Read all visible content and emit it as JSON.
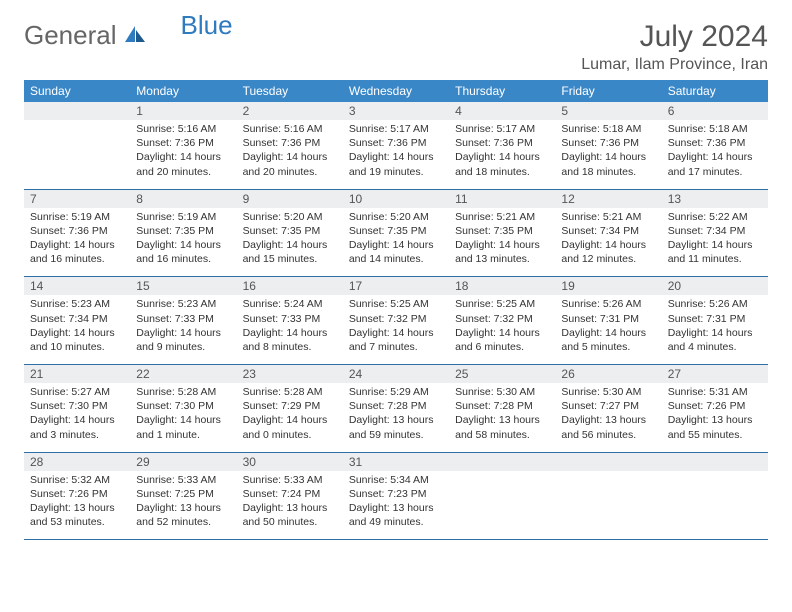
{
  "logo": {
    "general": "General",
    "blue": "Blue"
  },
  "title": "July 2024",
  "location": "Lumar, Ilam Province, Iran",
  "colors": {
    "header_bg": "#3a87c8",
    "header_text": "#ffffff",
    "daynum_bg": "#eceef0",
    "border": "#2f6fa8",
    "logo_blue": "#2f7bbf",
    "text": "#333333"
  },
  "weekdays": [
    "Sunday",
    "Monday",
    "Tuesday",
    "Wednesday",
    "Thursday",
    "Friday",
    "Saturday"
  ],
  "weeks": [
    [
      null,
      {
        "n": "1",
        "sr": "Sunrise: 5:16 AM",
        "ss": "Sunset: 7:36 PM",
        "d1": "Daylight: 14 hours",
        "d2": "and 20 minutes."
      },
      {
        "n": "2",
        "sr": "Sunrise: 5:16 AM",
        "ss": "Sunset: 7:36 PM",
        "d1": "Daylight: 14 hours",
        "d2": "and 20 minutes."
      },
      {
        "n": "3",
        "sr": "Sunrise: 5:17 AM",
        "ss": "Sunset: 7:36 PM",
        "d1": "Daylight: 14 hours",
        "d2": "and 19 minutes."
      },
      {
        "n": "4",
        "sr": "Sunrise: 5:17 AM",
        "ss": "Sunset: 7:36 PM",
        "d1": "Daylight: 14 hours",
        "d2": "and 18 minutes."
      },
      {
        "n": "5",
        "sr": "Sunrise: 5:18 AM",
        "ss": "Sunset: 7:36 PM",
        "d1": "Daylight: 14 hours",
        "d2": "and 18 minutes."
      },
      {
        "n": "6",
        "sr": "Sunrise: 5:18 AM",
        "ss": "Sunset: 7:36 PM",
        "d1": "Daylight: 14 hours",
        "d2": "and 17 minutes."
      }
    ],
    [
      {
        "n": "7",
        "sr": "Sunrise: 5:19 AM",
        "ss": "Sunset: 7:36 PM",
        "d1": "Daylight: 14 hours",
        "d2": "and 16 minutes."
      },
      {
        "n": "8",
        "sr": "Sunrise: 5:19 AM",
        "ss": "Sunset: 7:35 PM",
        "d1": "Daylight: 14 hours",
        "d2": "and 16 minutes."
      },
      {
        "n": "9",
        "sr": "Sunrise: 5:20 AM",
        "ss": "Sunset: 7:35 PM",
        "d1": "Daylight: 14 hours",
        "d2": "and 15 minutes."
      },
      {
        "n": "10",
        "sr": "Sunrise: 5:20 AM",
        "ss": "Sunset: 7:35 PM",
        "d1": "Daylight: 14 hours",
        "d2": "and 14 minutes."
      },
      {
        "n": "11",
        "sr": "Sunrise: 5:21 AM",
        "ss": "Sunset: 7:35 PM",
        "d1": "Daylight: 14 hours",
        "d2": "and 13 minutes."
      },
      {
        "n": "12",
        "sr": "Sunrise: 5:21 AM",
        "ss": "Sunset: 7:34 PM",
        "d1": "Daylight: 14 hours",
        "d2": "and 12 minutes."
      },
      {
        "n": "13",
        "sr": "Sunrise: 5:22 AM",
        "ss": "Sunset: 7:34 PM",
        "d1": "Daylight: 14 hours",
        "d2": "and 11 minutes."
      }
    ],
    [
      {
        "n": "14",
        "sr": "Sunrise: 5:23 AM",
        "ss": "Sunset: 7:34 PM",
        "d1": "Daylight: 14 hours",
        "d2": "and 10 minutes."
      },
      {
        "n": "15",
        "sr": "Sunrise: 5:23 AM",
        "ss": "Sunset: 7:33 PM",
        "d1": "Daylight: 14 hours",
        "d2": "and 9 minutes."
      },
      {
        "n": "16",
        "sr": "Sunrise: 5:24 AM",
        "ss": "Sunset: 7:33 PM",
        "d1": "Daylight: 14 hours",
        "d2": "and 8 minutes."
      },
      {
        "n": "17",
        "sr": "Sunrise: 5:25 AM",
        "ss": "Sunset: 7:32 PM",
        "d1": "Daylight: 14 hours",
        "d2": "and 7 minutes."
      },
      {
        "n": "18",
        "sr": "Sunrise: 5:25 AM",
        "ss": "Sunset: 7:32 PM",
        "d1": "Daylight: 14 hours",
        "d2": "and 6 minutes."
      },
      {
        "n": "19",
        "sr": "Sunrise: 5:26 AM",
        "ss": "Sunset: 7:31 PM",
        "d1": "Daylight: 14 hours",
        "d2": "and 5 minutes."
      },
      {
        "n": "20",
        "sr": "Sunrise: 5:26 AM",
        "ss": "Sunset: 7:31 PM",
        "d1": "Daylight: 14 hours",
        "d2": "and 4 minutes."
      }
    ],
    [
      {
        "n": "21",
        "sr": "Sunrise: 5:27 AM",
        "ss": "Sunset: 7:30 PM",
        "d1": "Daylight: 14 hours",
        "d2": "and 3 minutes."
      },
      {
        "n": "22",
        "sr": "Sunrise: 5:28 AM",
        "ss": "Sunset: 7:30 PM",
        "d1": "Daylight: 14 hours",
        "d2": "and 1 minute."
      },
      {
        "n": "23",
        "sr": "Sunrise: 5:28 AM",
        "ss": "Sunset: 7:29 PM",
        "d1": "Daylight: 14 hours",
        "d2": "and 0 minutes."
      },
      {
        "n": "24",
        "sr": "Sunrise: 5:29 AM",
        "ss": "Sunset: 7:28 PM",
        "d1": "Daylight: 13 hours",
        "d2": "and 59 minutes."
      },
      {
        "n": "25",
        "sr": "Sunrise: 5:30 AM",
        "ss": "Sunset: 7:28 PM",
        "d1": "Daylight: 13 hours",
        "d2": "and 58 minutes."
      },
      {
        "n": "26",
        "sr": "Sunrise: 5:30 AM",
        "ss": "Sunset: 7:27 PM",
        "d1": "Daylight: 13 hours",
        "d2": "and 56 minutes."
      },
      {
        "n": "27",
        "sr": "Sunrise: 5:31 AM",
        "ss": "Sunset: 7:26 PM",
        "d1": "Daylight: 13 hours",
        "d2": "and 55 minutes."
      }
    ],
    [
      {
        "n": "28",
        "sr": "Sunrise: 5:32 AM",
        "ss": "Sunset: 7:26 PM",
        "d1": "Daylight: 13 hours",
        "d2": "and 53 minutes."
      },
      {
        "n": "29",
        "sr": "Sunrise: 5:33 AM",
        "ss": "Sunset: 7:25 PM",
        "d1": "Daylight: 13 hours",
        "d2": "and 52 minutes."
      },
      {
        "n": "30",
        "sr": "Sunrise: 5:33 AM",
        "ss": "Sunset: 7:24 PM",
        "d1": "Daylight: 13 hours",
        "d2": "and 50 minutes."
      },
      {
        "n": "31",
        "sr": "Sunrise: 5:34 AM",
        "ss": "Sunset: 7:23 PM",
        "d1": "Daylight: 13 hours",
        "d2": "and 49 minutes."
      },
      null,
      null,
      null
    ]
  ]
}
